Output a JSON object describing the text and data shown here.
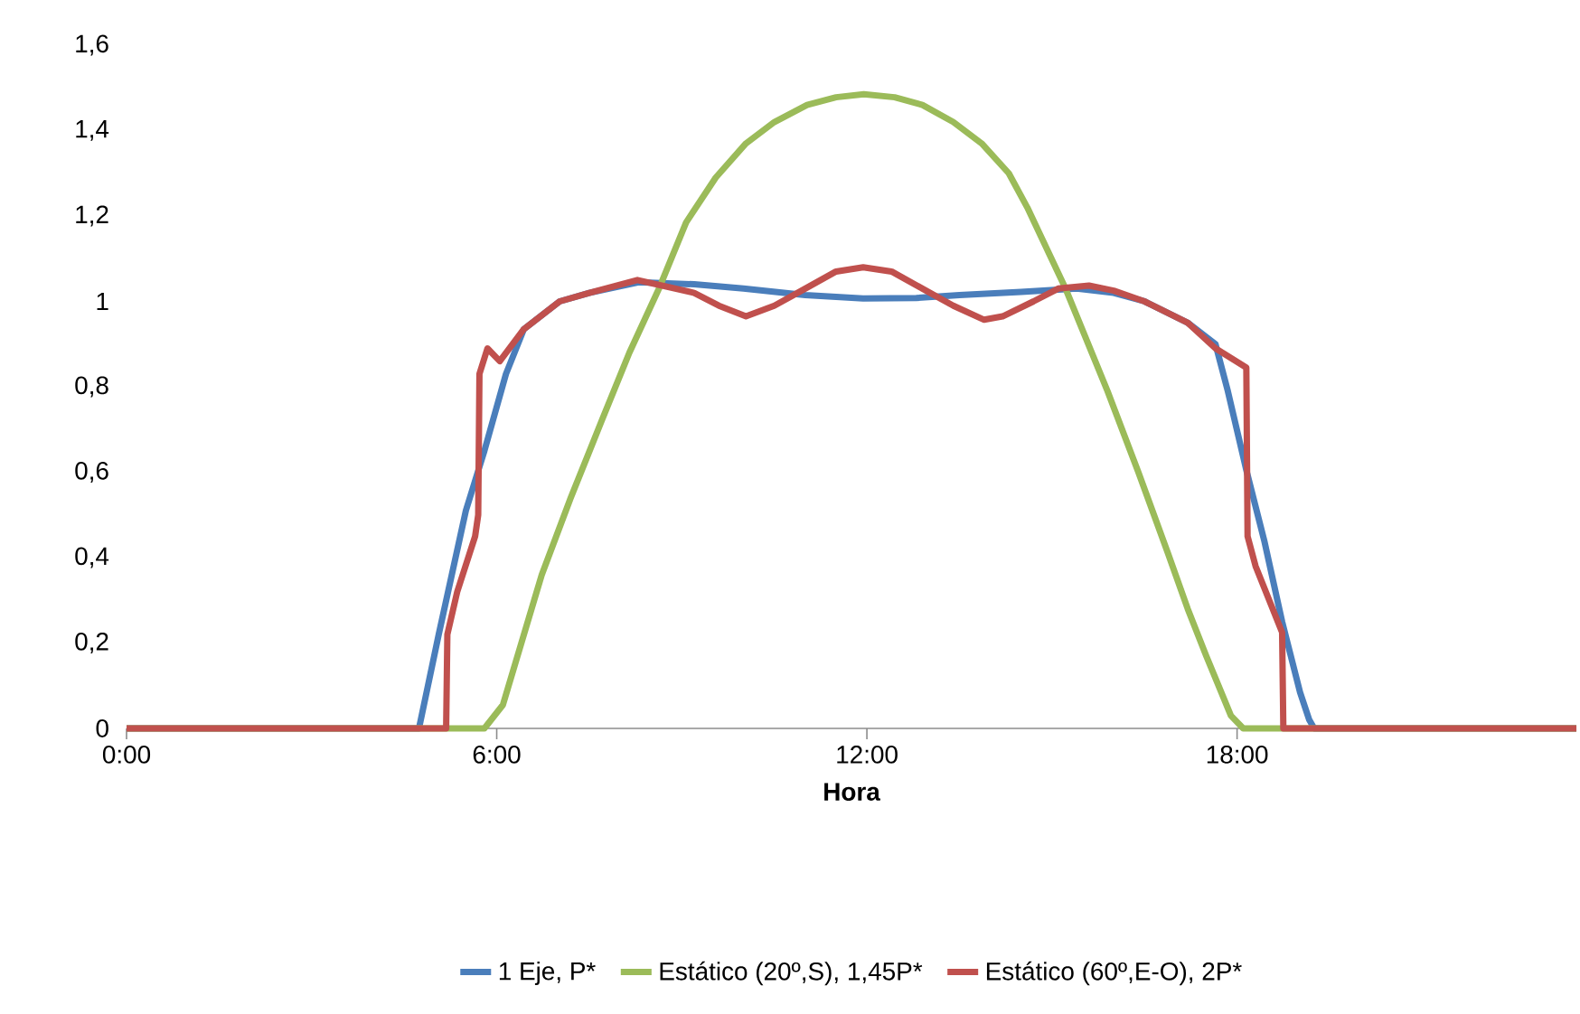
{
  "chart_data": {
    "type": "line",
    "xlabel": "Hora",
    "xlim": [
      0,
      23.5
    ],
    "ylim": [
      0,
      1.6
    ],
    "xticks": [
      {
        "value": 0,
        "label": "0:00"
      },
      {
        "value": 6,
        "label": "6:00"
      },
      {
        "value": 12,
        "label": "12:00"
      },
      {
        "value": 18,
        "label": "18:00"
      }
    ],
    "yticks": [
      0,
      {
        "value": 0.2,
        "label": "0,2"
      },
      {
        "value": 0.4,
        "label": "0,4"
      },
      {
        "value": 0.6,
        "label": "0,6"
      },
      {
        "value": 0.8,
        "label": "0,8"
      },
      1,
      {
        "value": 1.2,
        "label": "1,2"
      },
      {
        "value": 1.4,
        "label": "1,4"
      },
      {
        "value": 1.6,
        "label": "1,6"
      }
    ],
    "grid": false,
    "legend": "bottom",
    "marker": "none",
    "line_style": "solid",
    "series": [
      {
        "name": "1 Eje, P*",
        "color": "#4a7ebb",
        "x": [
          0,
          4.74,
          5.06,
          5.5,
          5.8,
          6.15,
          6.44,
          7.02,
          7.5,
          8.3,
          9.2,
          10,
          11,
          11.94,
          12.8,
          13.5,
          14.5,
          15.4,
          16,
          16.5,
          17.2,
          17.65,
          17.85,
          18.15,
          18.44,
          18.73,
          19.02,
          19.17,
          19.25,
          23.5
        ],
        "values": [
          0,
          0,
          0.22,
          0.51,
          0.65,
          0.83,
          0.935,
          1.0,
          1.02,
          1.045,
          1.04,
          1.03,
          1.015,
          1.007,
          1.008,
          1.015,
          1.022,
          1.03,
          1.02,
          1.0,
          0.95,
          0.9,
          0.79,
          0.605,
          0.44,
          0.25,
          0.085,
          0.02,
          0,
          0
        ]
      },
      {
        "name": "Estático (20º,S), 1,45P*",
        "color": "#9bbb59",
        "x": [
          0,
          5.8,
          6.1,
          6.73,
          7.2,
          7.7,
          8.15,
          8.63,
          9.07,
          9.55,
          10.04,
          10.5,
          11.03,
          11.5,
          11.95,
          12.45,
          12.9,
          13.4,
          13.86,
          14.3,
          14.6,
          15.22,
          15.9,
          16.4,
          16.88,
          17.2,
          17.5,
          17.9,
          18.1,
          23.5
        ],
        "values": [
          0,
          0,
          0.055,
          0.36,
          0.54,
          0.72,
          0.88,
          1.03,
          1.185,
          1.29,
          1.37,
          1.42,
          1.46,
          1.478,
          1.485,
          1.478,
          1.46,
          1.42,
          1.37,
          1.3,
          1.22,
          1.03,
          0.79,
          0.6,
          0.41,
          0.28,
          0.17,
          0.03,
          0,
          0
        ]
      },
      {
        "name": "Estático (60º,E-O), 2P*",
        "color": "#c0504d",
        "x": [
          0,
          5.18,
          5.2,
          5.36,
          5.65,
          5.7,
          5.72,
          5.85,
          6.05,
          6.44,
          7.02,
          7.5,
          8.28,
          9.2,
          9.6,
          10.04,
          10.5,
          11.0,
          11.5,
          11.94,
          12.4,
          12.9,
          13.4,
          13.9,
          14.2,
          14.7,
          15.1,
          15.6,
          16,
          16.5,
          17.2,
          17.65,
          18.15,
          18.17,
          18.3,
          18.73,
          18.75,
          23.5
        ],
        "values": [
          0,
          0,
          0.22,
          0.32,
          0.45,
          0.5,
          0.83,
          0.89,
          0.86,
          0.935,
          1.0,
          1.02,
          1.05,
          1.02,
          0.99,
          0.965,
          0.99,
          1.03,
          1.07,
          1.08,
          1.07,
          1.03,
          0.99,
          0.957,
          0.965,
          1.0,
          1.03,
          1.037,
          1.025,
          1.0,
          0.95,
          0.89,
          0.845,
          0.45,
          0.38,
          0.225,
          0,
          0
        ]
      }
    ]
  }
}
